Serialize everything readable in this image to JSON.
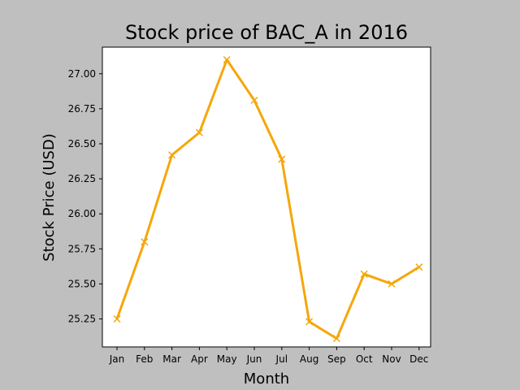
{
  "chart_data": {
    "type": "line",
    "title": "Stock price of BAC_A in 2016",
    "xlabel": "Month",
    "ylabel": "Stock Price (USD)",
    "categories": [
      "Jan",
      "Feb",
      "Mar",
      "Apr",
      "May",
      "Jun",
      "Jul",
      "Aug",
      "Sep",
      "Oct",
      "Nov",
      "Dec"
    ],
    "series": [
      {
        "values": [
          25.25,
          25.8,
          26.42,
          26.58,
          27.1,
          26.81,
          26.39,
          25.23,
          25.11,
          25.57,
          25.5,
          25.62
        ],
        "color": "#f5a70a",
        "marker": "x"
      }
    ],
    "yticks": [
      "25.25",
      "25.50",
      "25.75",
      "26.00",
      "26.25",
      "26.50",
      "26.75",
      "27.00"
    ],
    "ylim": [
      25.05,
      27.19
    ],
    "grid": false,
    "legend": false
  }
}
